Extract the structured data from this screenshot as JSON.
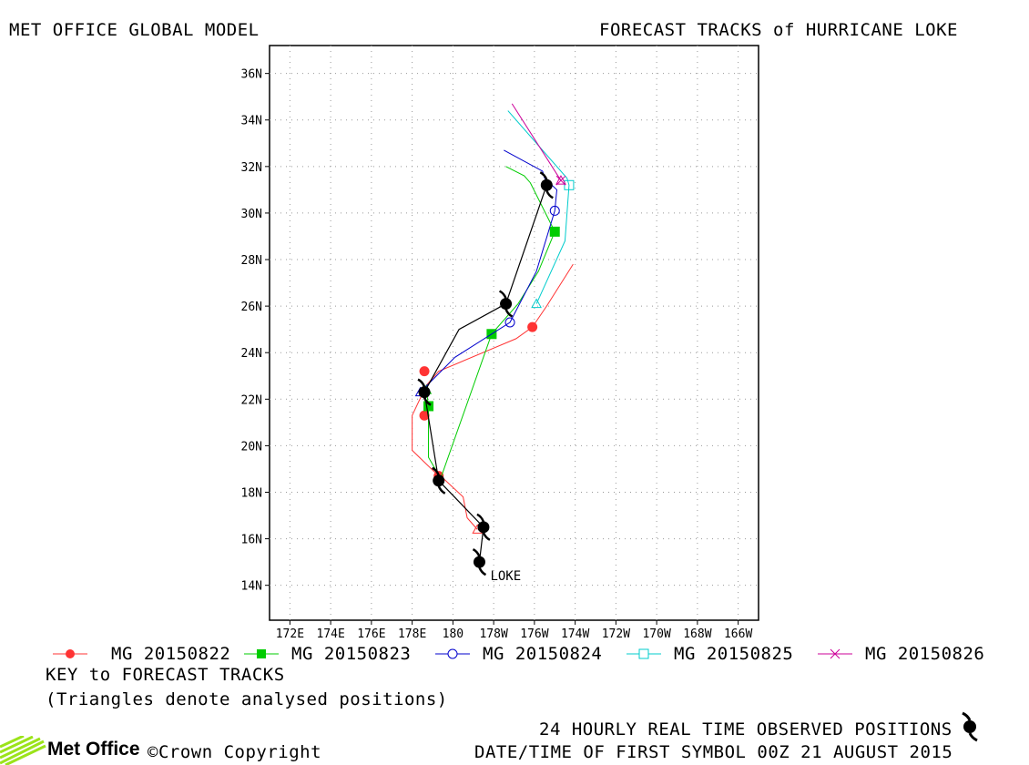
{
  "header": {
    "left_title": "MET OFFICE GLOBAL MODEL",
    "right_title": "FORECAST TRACKS of HURRICANE LOKE"
  },
  "key": {
    "title": "KEY to FORECAST TRACKS",
    "note": "(Triangles denote analysed positions)"
  },
  "footer": {
    "observed_label": "24 HOURLY REAL TIME OBSERVED POSITIONS",
    "first_symbol": "DATE/TIME OF FIRST SYMBOL 00Z 21 AUGUST 2015",
    "brand": "Met Office",
    "copyright": "©Crown Copyright"
  },
  "chart_data": {
    "type": "line",
    "title": "FORECAST TRACKS of HURRICANE LOKE",
    "x_axis": {
      "ticks": [
        "172E",
        "174E",
        "176E",
        "178E",
        "180",
        "178W",
        "176W",
        "174W",
        "172W",
        "170W",
        "168W",
        "166W"
      ],
      "range_deg_east": [
        171,
        195
      ]
    },
    "y_axis": {
      "ticks": [
        "14N",
        "16N",
        "18N",
        "20N",
        "22N",
        "24N",
        "26N",
        "28N",
        "30N",
        "32N",
        "34N",
        "36N"
      ],
      "range_deg_north": [
        12.5,
        37.2
      ]
    },
    "grid": true,
    "storm_label": "LOKE",
    "observed_track": {
      "name": "24 HOURLY REAL TIME OBSERVED POSITIONS",
      "points_lon_e": [
        181.3,
        181.5,
        179.3,
        178.6,
        178.6,
        180.3,
        182.6,
        184.6
      ],
      "points_lat_n": [
        15.0,
        16.5,
        18.5,
        22.3,
        22.3,
        25.0,
        26.1,
        31.2
      ],
      "symbol_indices": [
        0,
        1,
        2,
        3,
        6,
        7
      ]
    },
    "series": [
      {
        "name": "MG 20150822",
        "color": "#ff3333",
        "marker": "filled-circle",
        "lon_e": [
          181.2,
          180.7,
          180.5,
          179.4,
          179.3,
          178.0,
          178.0,
          178.7,
          179.3,
          183.1,
          183.9,
          184.6,
          185.9
        ],
        "lat_n": [
          16.4,
          16.9,
          17.8,
          18.7,
          18.7,
          19.8,
          21.3,
          22.6,
          23.2,
          24.6,
          25.1,
          26.0,
          27.8
        ],
        "markers_lon_e": [
          179.3,
          178.6,
          178.6,
          183.9
        ],
        "markers_lat_n": [
          18.7,
          21.3,
          23.2,
          25.1
        ]
      },
      {
        "name": "MG 20150823",
        "color": "#00cc00",
        "marker": "filled-square",
        "lon_e": [
          178.7,
          178.8,
          178.8,
          179.4,
          181.9,
          183.2,
          184.2,
          185.0,
          183.8,
          183.5,
          182.6
        ],
        "lat_n": [
          22.4,
          21.7,
          19.5,
          18.6,
          24.8,
          26.1,
          27.5,
          29.2,
          31.3,
          31.6,
          32.0
        ],
        "markers_lon_e": [
          178.8,
          181.9,
          185.0
        ],
        "markers_lat_n": [
          21.7,
          24.8,
          29.2
        ]
      },
      {
        "name": "MG 20150824",
        "color": "#0000cc",
        "marker": "open-circle",
        "lon_e": [
          178.4,
          180.1,
          182.8,
          184.1,
          185.0,
          185.1,
          184.5,
          184.4,
          182.5
        ],
        "lat_n": [
          22.3,
          23.8,
          25.3,
          27.5,
          30.1,
          31.0,
          31.5,
          31.8,
          32.7
        ],
        "markers_lon_e": [
          182.8,
          185.0
        ],
        "markers_lat_n": [
          25.3,
          30.1
        ]
      },
      {
        "name": "MG 20150825",
        "color": "#00cccc",
        "marker": "open-square",
        "lon_e": [
          184.1,
          185.5,
          185.7,
          185.6,
          182.7
        ],
        "lat_n": [
          26.1,
          28.8,
          31.2,
          31.5,
          34.4
        ],
        "markers_lon_e": [
          185.7
        ],
        "markers_lat_n": [
          31.2
        ]
      },
      {
        "name": "MG 20150826",
        "color": "#cc0099",
        "marker": "cross",
        "lon_e": [
          185.3,
          182.9
        ],
        "lat_n": [
          31.4,
          34.7
        ],
        "markers_lon_e": [
          185.3
        ],
        "markers_lat_n": [
          31.4
        ]
      }
    ]
  }
}
